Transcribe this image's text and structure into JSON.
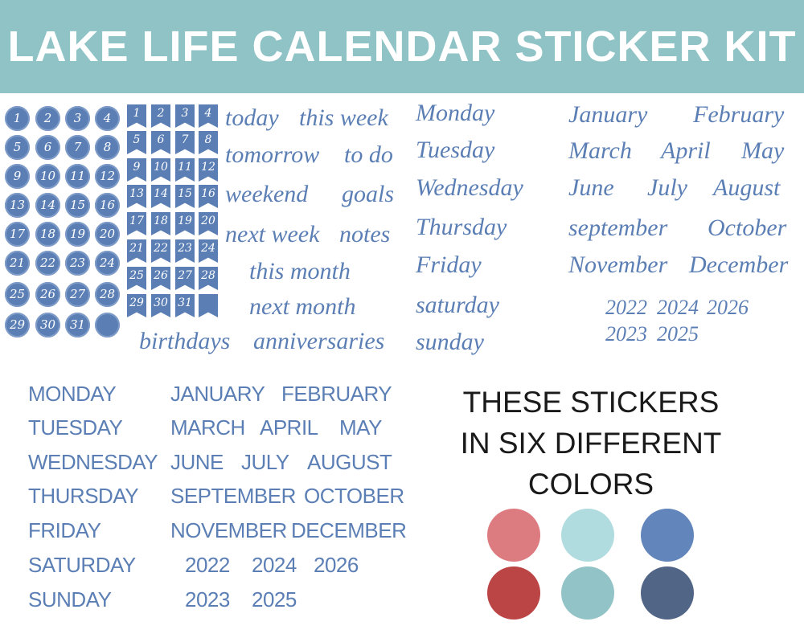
{
  "title": "LAKE LIFE CALENDAR STICKER KIT",
  "colors": {
    "header": "#8fc3c6",
    "sticker_blue": "#5b7fb5"
  },
  "circle_numbers": [
    "1",
    "2",
    "3",
    "4",
    "5",
    "6",
    "7",
    "8",
    "9",
    "10",
    "11",
    "12",
    "13",
    "14",
    "15",
    "16",
    "17",
    "18",
    "19",
    "20",
    "21",
    "22",
    "23",
    "24",
    "25",
    "26",
    "27",
    "28",
    "29",
    "30",
    "31",
    ""
  ],
  "flag_numbers": [
    "1",
    "2",
    "3",
    "4",
    "5",
    "6",
    "7",
    "8",
    "9",
    "10",
    "11",
    "12",
    "13",
    "14",
    "15",
    "16",
    "17",
    "18",
    "19",
    "20",
    "21",
    "22",
    "23",
    "24",
    "25",
    "26",
    "27",
    "28",
    "29",
    "30",
    "31",
    ""
  ],
  "script_phrases": [
    "today",
    "this week",
    "tomorrow",
    "to do",
    "weekend",
    "goals",
    "next week",
    "notes",
    "this month",
    "next month",
    "birthdays",
    "anniversaries"
  ],
  "script_days": [
    "Monday",
    "Tuesday",
    "Wednesday",
    "Thursday",
    "Friday",
    "saturday",
    "sunday"
  ],
  "script_months": [
    "January",
    "February",
    "March",
    "April",
    "May",
    "June",
    "July",
    "August",
    "september",
    "October",
    "November",
    "December"
  ],
  "script_years": [
    "2022",
    "2024",
    "2026",
    "2023",
    "2025"
  ],
  "print_days": [
    "MONDAY",
    "TUESDAY",
    "WEDNESDAY",
    "THURSDAY",
    "FRIDAY",
    "SATURDAY",
    "SUNDAY"
  ],
  "print_months": [
    "JANUARY",
    "FEBRUARY",
    "MARCH",
    "APRIL",
    "MAY",
    "JUNE",
    "JULY",
    "AUGUST",
    "SEPTEMBER",
    "OCTOBER",
    "NOVEMBER",
    "DECEMBER"
  ],
  "print_years": [
    "2022",
    "2024",
    "2026",
    "2023",
    "2025"
  ],
  "colors_note": {
    "line1": "THESE STICKERS",
    "line2": "IN SIX DIFFERENT",
    "line3": "COLORS"
  },
  "swatches": [
    "#dc7b80",
    "#b0dcdf",
    "#6286bb",
    "#bb4444",
    "#92c4c7",
    "#516586"
  ]
}
